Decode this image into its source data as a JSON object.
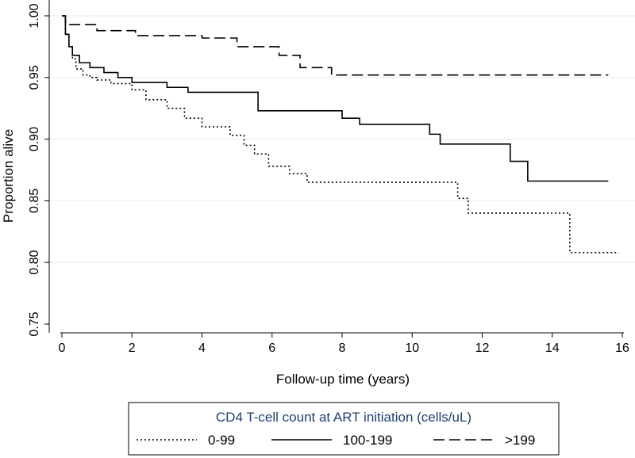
{
  "chart_data": {
    "type": "line",
    "title": "",
    "xlabel": "Follow-up time (years)",
    "ylabel": "Proportion alive",
    "xlim": [
      0,
      16
    ],
    "ylim": [
      0.75,
      1.0
    ],
    "xticks": [
      "0",
      "2",
      "4",
      "6",
      "8",
      "10",
      "12",
      "14",
      "16"
    ],
    "yticks": [
      "0.75",
      "0.80",
      "0.85",
      "0.90",
      "0.95",
      "1.00"
    ],
    "grid": "horizontal",
    "legend": {
      "title": "CD4 T-cell count at ART initiation (cells/uL)",
      "placement": "bottom",
      "title_color": "#1f3f6f"
    },
    "series": [
      {
        "name": "0-99",
        "style": "dotted",
        "x": [
          0,
          0.1,
          0.2,
          0.3,
          0.4,
          0.6,
          0.8,
          1.0,
          1.4,
          2.0,
          2.4,
          3.0,
          3.5,
          4.0,
          4.8,
          5.2,
          5.5,
          5.9,
          6.5,
          7.0,
          11.3,
          11.6,
          14.5,
          15.9
        ],
        "y": [
          1.0,
          0.985,
          0.975,
          0.965,
          0.957,
          0.952,
          0.95,
          0.948,
          0.945,
          0.94,
          0.932,
          0.925,
          0.917,
          0.91,
          0.903,
          0.895,
          0.888,
          0.878,
          0.872,
          0.865,
          0.852,
          0.84,
          0.808,
          0.808
        ]
      },
      {
        "name": "100-199",
        "style": "solid",
        "x": [
          0,
          0.1,
          0.2,
          0.3,
          0.5,
          0.8,
          1.2,
          1.6,
          2.0,
          3.0,
          3.6,
          5.6,
          8.0,
          8.5,
          10.5,
          10.8,
          12.8,
          13.3,
          15.6
        ],
        "y": [
          1.0,
          0.985,
          0.975,
          0.968,
          0.962,
          0.958,
          0.954,
          0.95,
          0.946,
          0.942,
          0.938,
          0.923,
          0.917,
          0.912,
          0.904,
          0.896,
          0.882,
          0.866,
          0.866
        ]
      },
      {
        "name": ">199",
        "style": "dashed",
        "x": [
          0,
          0.1,
          1.0,
          2.1,
          4.0,
          5.0,
          6.2,
          6.8,
          7.7,
          15.6
        ],
        "y": [
          1.0,
          0.993,
          0.988,
          0.984,
          0.982,
          0.975,
          0.968,
          0.958,
          0.952,
          0.952
        ]
      }
    ]
  }
}
